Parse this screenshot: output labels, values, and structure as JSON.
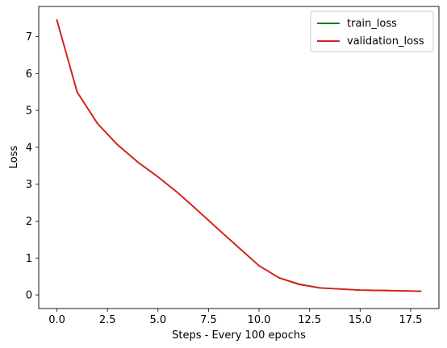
{
  "chart_data": {
    "type": "line",
    "title": "",
    "xlabel": "Steps - Every 100 epochs",
    "ylabel": "Loss",
    "xlim": [
      -0.9,
      18.9
    ],
    "ylim": [
      -0.37,
      7.82
    ],
    "xticks": [
      0,
      2.5,
      5,
      7.5,
      10,
      12.5,
      15,
      17.5
    ],
    "xtick_labels": [
      "0.0",
      "2.5",
      "5.0",
      "7.5",
      "10.0",
      "12.5",
      "15.0",
      "17.5"
    ],
    "yticks": [
      0,
      1,
      2,
      3,
      4,
      5,
      6,
      7
    ],
    "ytick_labels": [
      "0",
      "1",
      "2",
      "3",
      "4",
      "5",
      "6",
      "7"
    ],
    "grid": false,
    "legend_position": "top-right",
    "x": [
      0,
      1,
      2,
      3,
      4,
      5,
      6,
      7,
      8,
      9,
      10,
      11,
      12,
      13,
      14,
      15,
      16,
      17,
      18
    ],
    "series": [
      {
        "name": "train_loss",
        "color": "#008000",
        "values": [
          7.45,
          5.5,
          4.65,
          4.07,
          3.6,
          3.2,
          2.76,
          2.27,
          1.77,
          1.28,
          0.79,
          0.46,
          0.29,
          0.19,
          0.16,
          0.13,
          0.12,
          0.11,
          0.1
        ]
      },
      {
        "name": "validation_loss",
        "color": "#e31a1c",
        "values": [
          7.45,
          5.5,
          4.65,
          4.07,
          3.6,
          3.2,
          2.76,
          2.27,
          1.77,
          1.28,
          0.79,
          0.46,
          0.28,
          0.19,
          0.16,
          0.13,
          0.12,
          0.11,
          0.1
        ]
      }
    ]
  }
}
